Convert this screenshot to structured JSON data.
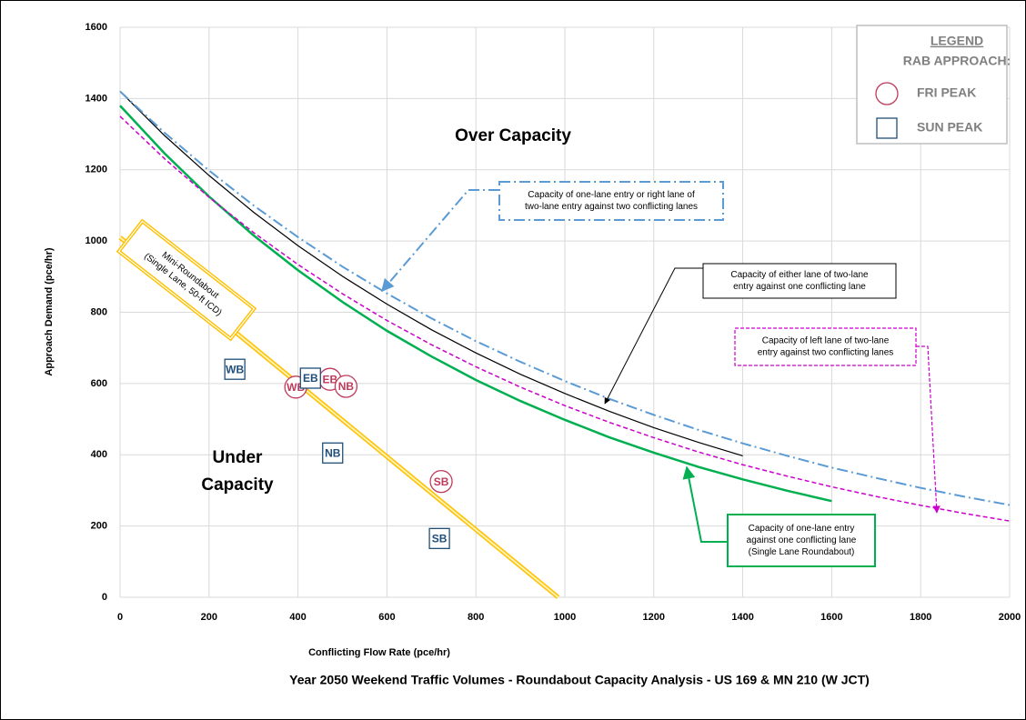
{
  "chart_data": {
    "type": "line",
    "title": "Year 2050 Weekend Traffic Volumes - Roundabout Capacity Analysis - US 169 & MN 210 (W JCT)",
    "x_label": "Conflicting Flow Rate (pce/hr)",
    "y_label": "Approach Demand (pce/hr)",
    "xlim": [
      0,
      2000
    ],
    "xticks": [
      0,
      200,
      400,
      600,
      800,
      1000,
      1200,
      1400,
      1600,
      1800,
      2000
    ],
    "ylim": [
      0,
      1600
    ],
    "yticks": [
      0,
      200,
      400,
      600,
      800,
      1000,
      1200,
      1400,
      1600
    ],
    "grid": true,
    "annotations": [
      "Over Capacity",
      [
        "Under",
        "Capacity"
      ]
    ],
    "legend": {
      "position": "top-right",
      "title": "LEGEND",
      "subtitle": "RAB APPROACH:"
    },
    "series": [
      {
        "type": "line",
        "color": "#00b050",
        "dash": null,
        "width": 2.5,
        "label": [
          "Capacity of one-lane entry",
          "against one conflicting lane",
          "(Single Lane Roundabout)"
        ],
        "x": [
          0,
          100,
          200,
          300,
          400,
          500,
          600,
          700,
          800,
          900,
          1000,
          1100,
          1200,
          1300,
          1400,
          1500,
          1600
        ],
        "values": [
          1380,
          1246,
          1125,
          1016,
          918,
          829,
          748,
          676,
          610,
          551,
          498,
          449,
          406,
          366,
          331,
          299,
          270
        ]
      },
      {
        "type": "line",
        "color": "#000000",
        "dash": null,
        "width": 1.2,
        "label": [
          "Capacity of either lane of two-lane",
          "entry against one conflicting lane"
        ],
        "x": [
          0,
          100,
          200,
          300,
          400,
          500,
          600,
          700,
          800,
          900,
          1000,
          1100,
          1200,
          1300,
          1400
        ],
        "values": [
          1420,
          1296,
          1184,
          1081,
          987,
          901,
          823,
          751,
          686,
          626,
          572,
          522,
          476,
          435,
          397
        ]
      },
      {
        "type": "line",
        "color": "#5b9bd5",
        "dash": "dashdot",
        "width": 2,
        "label": [
          "Capacity of one-lane entry or right lane of",
          "two-lane entry against two conflicting lanes"
        ],
        "x": [
          0,
          100,
          200,
          300,
          400,
          500,
          600,
          700,
          800,
          900,
          1000,
          1100,
          1200,
          1300,
          1400,
          1500,
          1600,
          1700,
          1800,
          1900,
          2000
        ],
        "values": [
          1420,
          1304,
          1198,
          1100,
          1011,
          928,
          853,
          783,
          719,
          661,
          607,
          557,
          512,
          470,
          432,
          397,
          364,
          335,
          307,
          282,
          259
        ]
      },
      {
        "type": "line",
        "color": "#cc00cc",
        "dash": "dash",
        "width": 1.5,
        "label": [
          "Capacity of left lane of two-lane",
          "entry against two conflicting lanes"
        ],
        "x": [
          0,
          100,
          200,
          300,
          400,
          500,
          600,
          700,
          800,
          900,
          1000,
          1100,
          1200,
          1300,
          1400,
          1500,
          1600,
          1700,
          1800,
          1900,
          2000
        ],
        "values": [
          1350,
          1231,
          1123,
          1024,
          934,
          852,
          777,
          709,
          647,
          590,
          538,
          491,
          448,
          408,
          372,
          340,
          310,
          283,
          258,
          235,
          214
        ]
      },
      {
        "type": "line",
        "color": "#ffc000",
        "dash": "double",
        "width": 5,
        "label": [
          "Mini-Roundabout",
          "(Single Lane, 50-ft ICD)"
        ],
        "x": [
          0,
          985
        ],
        "values": [
          1010,
          0
        ]
      },
      {
        "type": "scatter",
        "name": "FRI PEAK",
        "marker": "circle",
        "color": "#be3a5a",
        "labels": [
          "WB",
          "EB",
          "NB",
          "SB"
        ],
        "x": [
          395,
          472,
          508,
          722
        ],
        "values": [
          590,
          612,
          592,
          325
        ]
      },
      {
        "type": "scatter",
        "name": "SUN PEAK",
        "marker": "square",
        "color": "#1f4e79",
        "labels": [
          "WB",
          "EB",
          "NB",
          "SB"
        ],
        "x": [
          258,
          428,
          478,
          718
        ],
        "values": [
          640,
          615,
          405,
          165
        ]
      }
    ]
  }
}
